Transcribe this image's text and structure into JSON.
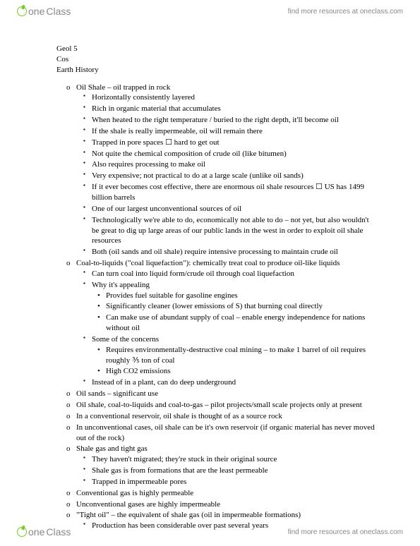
{
  "header": {
    "logo_text_one": "one",
    "logo_text_class": "Class",
    "link": "find more resources at oneclass.com"
  },
  "footer": {
    "logo_text_one": "one",
    "logo_text_class": "Class",
    "link": "find more resources at oneclass.com"
  },
  "title": {
    "line1": "Geol 5",
    "line2": "Cos",
    "line3": "Earth History"
  },
  "notes": [
    {
      "text": "Oil Shale – oil trapped in rock",
      "sub": [
        {
          "text": "Horizontally consistently layered"
        },
        {
          "text": "Rich in organic material that accumulates"
        },
        {
          "text": "When heated to the right temperature / buried to the right depth, it'll become oil"
        },
        {
          "text": "If the shale is really impermeable, oil will remain there"
        },
        {
          "text": "Trapped in pore spaces ☐ hard to get out"
        },
        {
          "text": "Not quite the chemical composition of crude oil (like bitumen)"
        },
        {
          "text": "Also requires processing to make oil"
        },
        {
          "text": "Very expensive; not practical to do at a large scale (unlike oil sands)"
        },
        {
          "text": "If it ever becomes cost effective, there are enormous oil shale resources ☐ US has 1499 billion barrels"
        },
        {
          "text": "One of our largest unconventional sources of oil"
        },
        {
          "text": "Technologically we're able to do, economically not able to do – not yet, but also wouldn't be great to dig up large areas of our public lands in the west in order to exploit oil shale resources"
        },
        {
          "text": "Both (oil sands and oil shale) require intensive processing to maintain crude oil"
        }
      ]
    },
    {
      "text": "Coal-to-liquids (\"coal liquefaction\"): chemically treat coal to produce oil-like liquids",
      "sub": [
        {
          "text": "Can turn coal into liquid form/crude oil through coal liquefaction"
        },
        {
          "text": "Why it's appealing",
          "sub": [
            {
              "text": "Provides fuel suitable for gasoline engines"
            },
            {
              "text": "Significantly cleaner (lower emissions of S) that burning coal directly"
            },
            {
              "text": "Can make use of abundant supply of coal – enable energy independence for nations without oil"
            }
          ]
        },
        {
          "text": "Some of the concerns",
          "sub": [
            {
              "text": "Requires environmentally-destructive coal mining – to make 1 barrel of oil requires roughly ⅗ ton of coal"
            },
            {
              "text": "High CO2 emissions"
            }
          ]
        },
        {
          "text": "Instead of in a plant, can do deep underground"
        }
      ]
    },
    {
      "text": "Oil sands – significant use"
    },
    {
      "text": "Oil shale, coal-to-liquids and coal-to-gas – pilot projects/small scale projects only at present"
    },
    {
      "text": "In a conventional reservoir, oil shale is thought of as a source rock"
    },
    {
      "text": "In unconventional cases, oil shale can be it's own reservoir (if organic material has never moved out of the rock)"
    },
    {
      "text": "Shale gas and tight gas",
      "sub": [
        {
          "text": "They haven't migrated; they're stuck in their original source"
        },
        {
          "text": "Shale gas is from formations that are the least permeable"
        },
        {
          "text": "Trapped in impermeable pores"
        }
      ]
    },
    {
      "text": "Conventional gas is highly permeable"
    },
    {
      "text": "Unconventional gases are highly impermeable"
    },
    {
      "text": "\"Tight oil\" – the equivalent of shale gas (oil in impermeable formations)",
      "sub": [
        {
          "text": "Production has been considerable over past several years"
        }
      ]
    }
  ]
}
